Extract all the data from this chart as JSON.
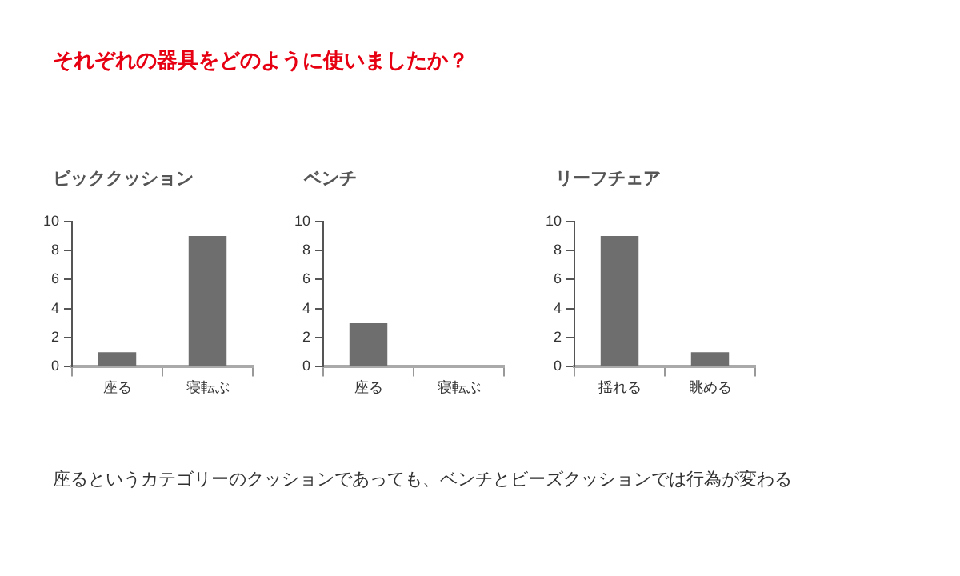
{
  "chart_data": [
    {
      "type": "other",
      "title": "それぞれの器具をどのように使いましたか？",
      "annotations": [
        "座るというカテゴリーのクッションであっても、ベンチとビーズクッションでは行為が変わる"
      ]
    },
    {
      "type": "bar",
      "title": "ビッククッション",
      "categories": [
        "座る",
        "寝転ぶ"
      ],
      "values": [
        1,
        9
      ],
      "color": "#6e6e6e",
      "ylim": [
        0,
        10
      ],
      "yticks": [
        0,
        2,
        4,
        6,
        8,
        10
      ],
      "grid": false,
      "legend": false
    },
    {
      "type": "bar",
      "title": "ベンチ",
      "categories": [
        "座る",
        "寝転ぶ"
      ],
      "values": [
        3,
        0
      ],
      "color": "#6e6e6e",
      "ylim": [
        0,
        10
      ],
      "yticks": [
        0,
        2,
        4,
        6,
        8,
        10
      ],
      "grid": false,
      "legend": false
    },
    {
      "type": "bar",
      "title": "リーフチェア",
      "categories": [
        "揺れる",
        "眺める"
      ],
      "values": [
        9,
        1
      ],
      "color": "#6e6e6e",
      "ylim": [
        0,
        10
      ],
      "yticks": [
        0,
        2,
        4,
        6,
        8,
        10
      ],
      "grid": false,
      "legend": false
    }
  ]
}
